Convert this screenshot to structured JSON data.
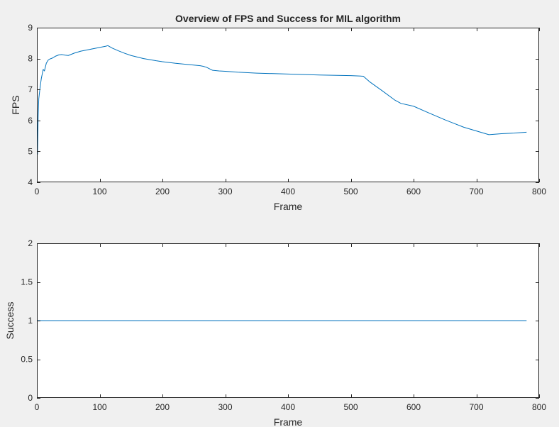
{
  "figure": {
    "background": "#f0f0f0",
    "axes_background": "#ffffff",
    "axis_color": "#262626",
    "line_color": "#0072bd"
  },
  "chart_data": [
    {
      "type": "line",
      "title": "Overview of FPS and Success for MIL algorithm",
      "xlabel": "Frame",
      "ylabel": "FPS",
      "xlim": [
        0,
        800
      ],
      "ylim": [
        4,
        9
      ],
      "xticks": [
        0,
        100,
        200,
        300,
        400,
        500,
        600,
        700,
        800
      ],
      "yticks": [
        4,
        5,
        6,
        7,
        8,
        9
      ],
      "grid": false,
      "series": [
        {
          "x": [
            1,
            2,
            3,
            5,
            7,
            10,
            12,
            15,
            18,
            20,
            25,
            30,
            35,
            40,
            45,
            50,
            55,
            60,
            70,
            80,
            90,
            100,
            110,
            113,
            120,
            130,
            140,
            150,
            170,
            190,
            200,
            220,
            240,
            260,
            265,
            270,
            280,
            290,
            300,
            320,
            350,
            400,
            450,
            500,
            520,
            530,
            550,
            570,
            580,
            600,
            620,
            650,
            680,
            700,
            720,
            740,
            760,
            780
          ],
          "y": [
            4.9,
            6.1,
            6.7,
            7.05,
            7.35,
            7.65,
            7.6,
            7.85,
            7.95,
            7.98,
            8.02,
            8.08,
            8.12,
            8.13,
            8.11,
            8.1,
            8.14,
            8.18,
            8.24,
            8.28,
            8.32,
            8.36,
            8.4,
            8.42,
            8.34,
            8.25,
            8.17,
            8.1,
            8.0,
            7.93,
            7.9,
            7.85,
            7.81,
            7.77,
            7.75,
            7.72,
            7.62,
            7.6,
            7.59,
            7.56,
            7.53,
            7.5,
            7.47,
            7.45,
            7.43,
            7.25,
            6.96,
            6.66,
            6.55,
            6.46,
            6.28,
            6.02,
            5.78,
            5.66,
            5.54,
            5.57,
            5.59,
            5.62
          ]
        }
      ]
    },
    {
      "type": "line",
      "xlabel": "Frame",
      "ylabel": "Success",
      "xlim": [
        0,
        800
      ],
      "ylim": [
        0,
        2
      ],
      "xticks": [
        0,
        100,
        200,
        300,
        400,
        500,
        600,
        700,
        800
      ],
      "yticks": [
        0,
        0.5,
        1,
        1.5,
        2
      ],
      "grid": false,
      "series": [
        {
          "x": [
            1,
            780
          ],
          "y": [
            1,
            1
          ]
        }
      ]
    }
  ]
}
